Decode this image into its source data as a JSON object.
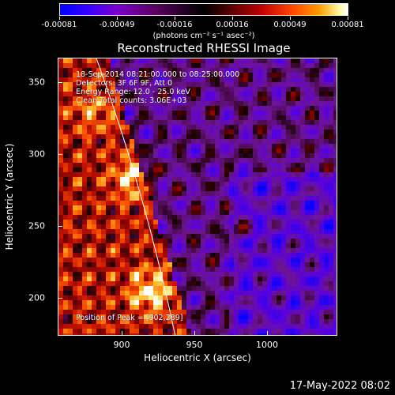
{
  "colorbar": {
    "tick_labels": [
      "-0.00081",
      "-0.00049",
      "-0.00016",
      "0.00016",
      "0.00049",
      "0.00081"
    ],
    "units": "(photons cm⁻² s⁻¹ asec⁻²)",
    "colors": [
      "#0000ff",
      "#7a00c8",
      "#000000",
      "#c00000",
      "#ff9a00",
      "#ffffff"
    ]
  },
  "plot": {
    "title": "Reconstructed RHESSI Image",
    "info_lines": [
      "18-Sep-2014 08:21:00.000 to 08:25:00.000",
      "Detectors: 3F 6F 9F, Att 0",
      "Energy Range: 12.0 - 25.0 keV",
      "Clean     Total counts: 3.06E+03"
    ],
    "peak_label": "Position of Peak = [902,289]",
    "x_label": "Heliocentric X (arcsec)",
    "y_label": "Heliocentric Y (arcsec)",
    "x_ticks": [
      "900",
      "950",
      "1000"
    ],
    "y_ticks": [
      "350",
      "300",
      "250",
      "200"
    ],
    "x_range": [
      861,
      1049
    ],
    "y_range": [
      169,
      368
    ]
  },
  "footer": {
    "timestamp": "17-May-2022 08:02"
  }
}
